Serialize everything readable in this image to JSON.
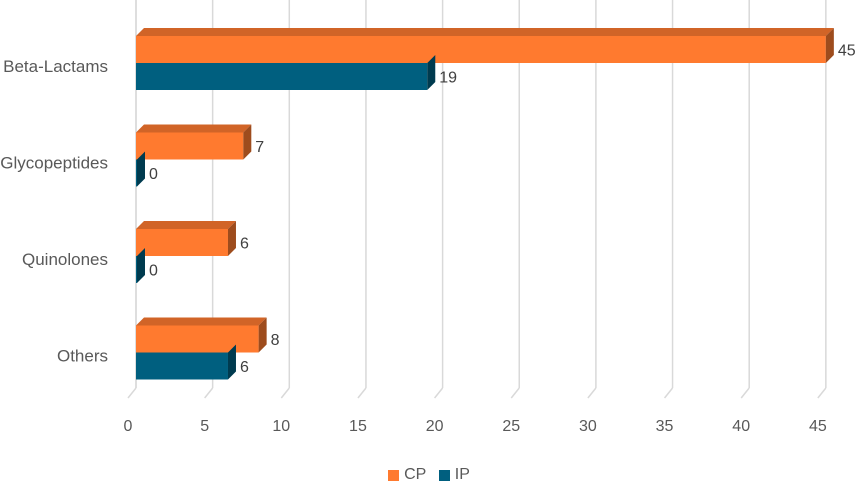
{
  "chart_data": {
    "type": "bar",
    "orientation": "horizontal",
    "style": "3d",
    "categories": [
      "Beta-Lactams",
      "Glycopeptides",
      "Quinolones",
      "Others"
    ],
    "series": [
      {
        "name": "CP",
        "color": "#FF7A2F",
        "values": [
          45,
          7,
          6,
          8
        ]
      },
      {
        "name": "IP",
        "color": "#005F7F",
        "values": [
          19,
          0,
          0,
          6
        ]
      }
    ],
    "xlim": [
      0,
      45
    ],
    "xticks": [
      0,
      5,
      10,
      15,
      20,
      25,
      30,
      35,
      40,
      45
    ],
    "grid": true,
    "legend_position": "bottom"
  }
}
